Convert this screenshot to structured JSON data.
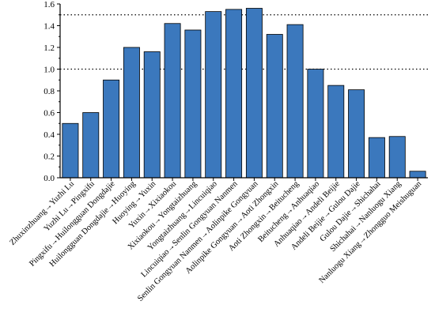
{
  "chart_data": {
    "type": "bar",
    "title": "",
    "xlabel": "",
    "ylabel": "",
    "ylim": [
      0,
      1.6
    ],
    "yticks": [
      "0.0",
      "0.2",
      "0.4",
      "0.6",
      "0.8",
      "1.0",
      "1.2",
      "1.4",
      "1.6"
    ],
    "bar_color": "#3b78bd",
    "reference_lines": [
      1.0,
      1.5
    ],
    "categories": [
      "Zhuxinzhuang→Yuzhi Lu",
      "Yuzhi Lu→Pingxifu",
      "Pingxifu→Huilongguan Dongdajie",
      "Huilongguan Dongdajie→Huoying",
      "Huoying→Yuxin",
      "Yuxin→Xixiaokou",
      "Xixiaokou→Yongtaizhuang",
      "Yongtaizhuang→Lincuiqiao",
      "Lincuiqiao→Senlin Gongyuan Nanmen",
      "Senlin Gongyuan Nanmen→Aolinpike Gongyuan",
      "Aolinpike Gongyuan→Aoti Zhongxin",
      "Aoti Zhongxin→Beitucheng",
      "Beitucheng→Anhuaqiao",
      "Anhuaqiao→Andeli Beijie",
      "Andeli Beijie→Gulou Dajie",
      "Gulou Dajie→Shichahai",
      "Shichahai→Nanluogu Xiang",
      "Nanluogu Xiang→Zhongguo Meishuguan"
    ],
    "values": [
      0.5,
      0.6,
      0.9,
      1.2,
      1.16,
      1.42,
      1.36,
      1.53,
      1.55,
      1.56,
      1.32,
      1.41,
      1.0,
      0.85,
      0.81,
      0.37,
      0.38,
      0.06
    ]
  }
}
